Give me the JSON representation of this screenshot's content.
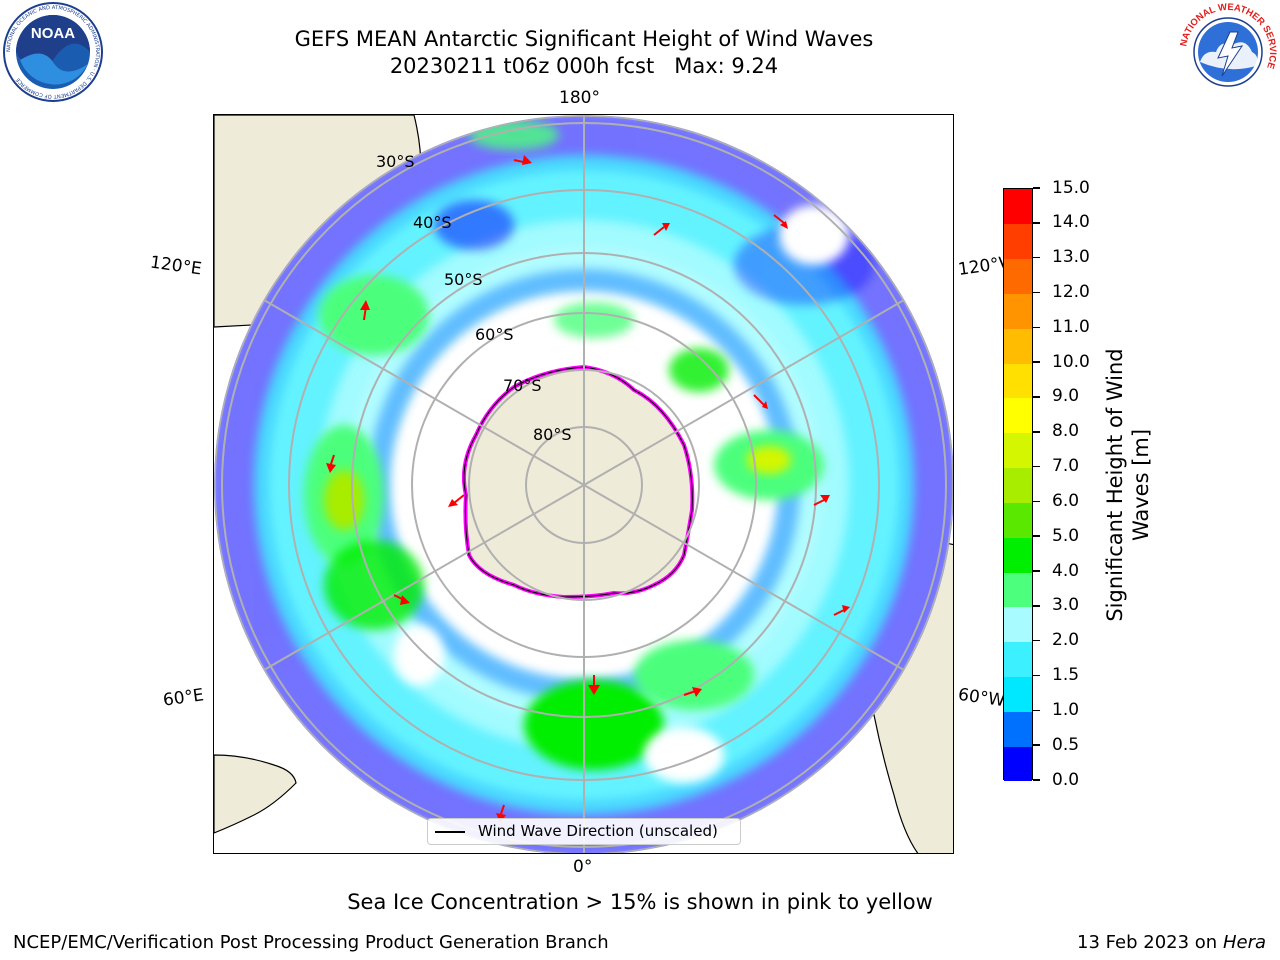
{
  "header": {
    "title_line1": "GEFS MEAN Antarctic Significant Height of Wind Waves",
    "title_line2": "20230211 t06z 000h fcst   Max: 9.24"
  },
  "logos": {
    "noaa": {
      "text": "NOAA",
      "ring_text": "NATIONAL OCEANIC AND ATMOSPHERIC ADMINISTRATION · U.S. DEPARTMENT OF COMMERCE"
    },
    "nws": {
      "ring_text": "NATIONAL WEATHER SERVICE"
    }
  },
  "map": {
    "longitude_labels": {
      "top": "180°",
      "bottom": "0°",
      "left_upper": "120°E",
      "left_lower": "60°E",
      "right_upper": "120°W",
      "right_lower": "60°W"
    },
    "latitude_labels": [
      "30°S",
      "40°S",
      "50°S",
      "60°S",
      "70°S",
      "80°S"
    ],
    "colors": {
      "land": "#efebd9",
      "sea_ice_low": "#ff00ff",
      "sea_ice_high": "#ffff00",
      "arrow": "#ff0000",
      "grid": "#b0b0b0"
    }
  },
  "colorbar": {
    "label": "Significant Height of Wind Waves [m]",
    "label_line1": "Significant Height of Wind",
    "label_line2": "Waves [m]",
    "ticks": [
      "0.0",
      "0.5",
      "1.0",
      "1.5",
      "2.0",
      "3.0",
      "4.0",
      "5.0",
      "6.0",
      "7.0",
      "8.0",
      "9.0",
      "10.0",
      "11.0",
      "12.0",
      "13.0",
      "14.0",
      "15.0"
    ],
    "colors": [
      "#0000ff",
      "#0070ff",
      "#00e8ff",
      "#3cf0ff",
      "#a8fcff",
      "#4cff7c",
      "#00ee00",
      "#5ae800",
      "#a8ec00",
      "#d4f600",
      "#ffff00",
      "#ffe000",
      "#ffbc00",
      "#ff9400",
      "#ff6a00",
      "#ff3e00",
      "#ff0000"
    ]
  },
  "legend": {
    "text": "Wind Wave Direction (unscaled)"
  },
  "note": "Sea Ice Concentration > 15% is shown in pink to yellow",
  "footer": {
    "left": "NCEP/EMC/Verification Post Processing Product Generation Branch",
    "right_date": "13 Feb 2023 on",
    "right_host": "Hera"
  }
}
